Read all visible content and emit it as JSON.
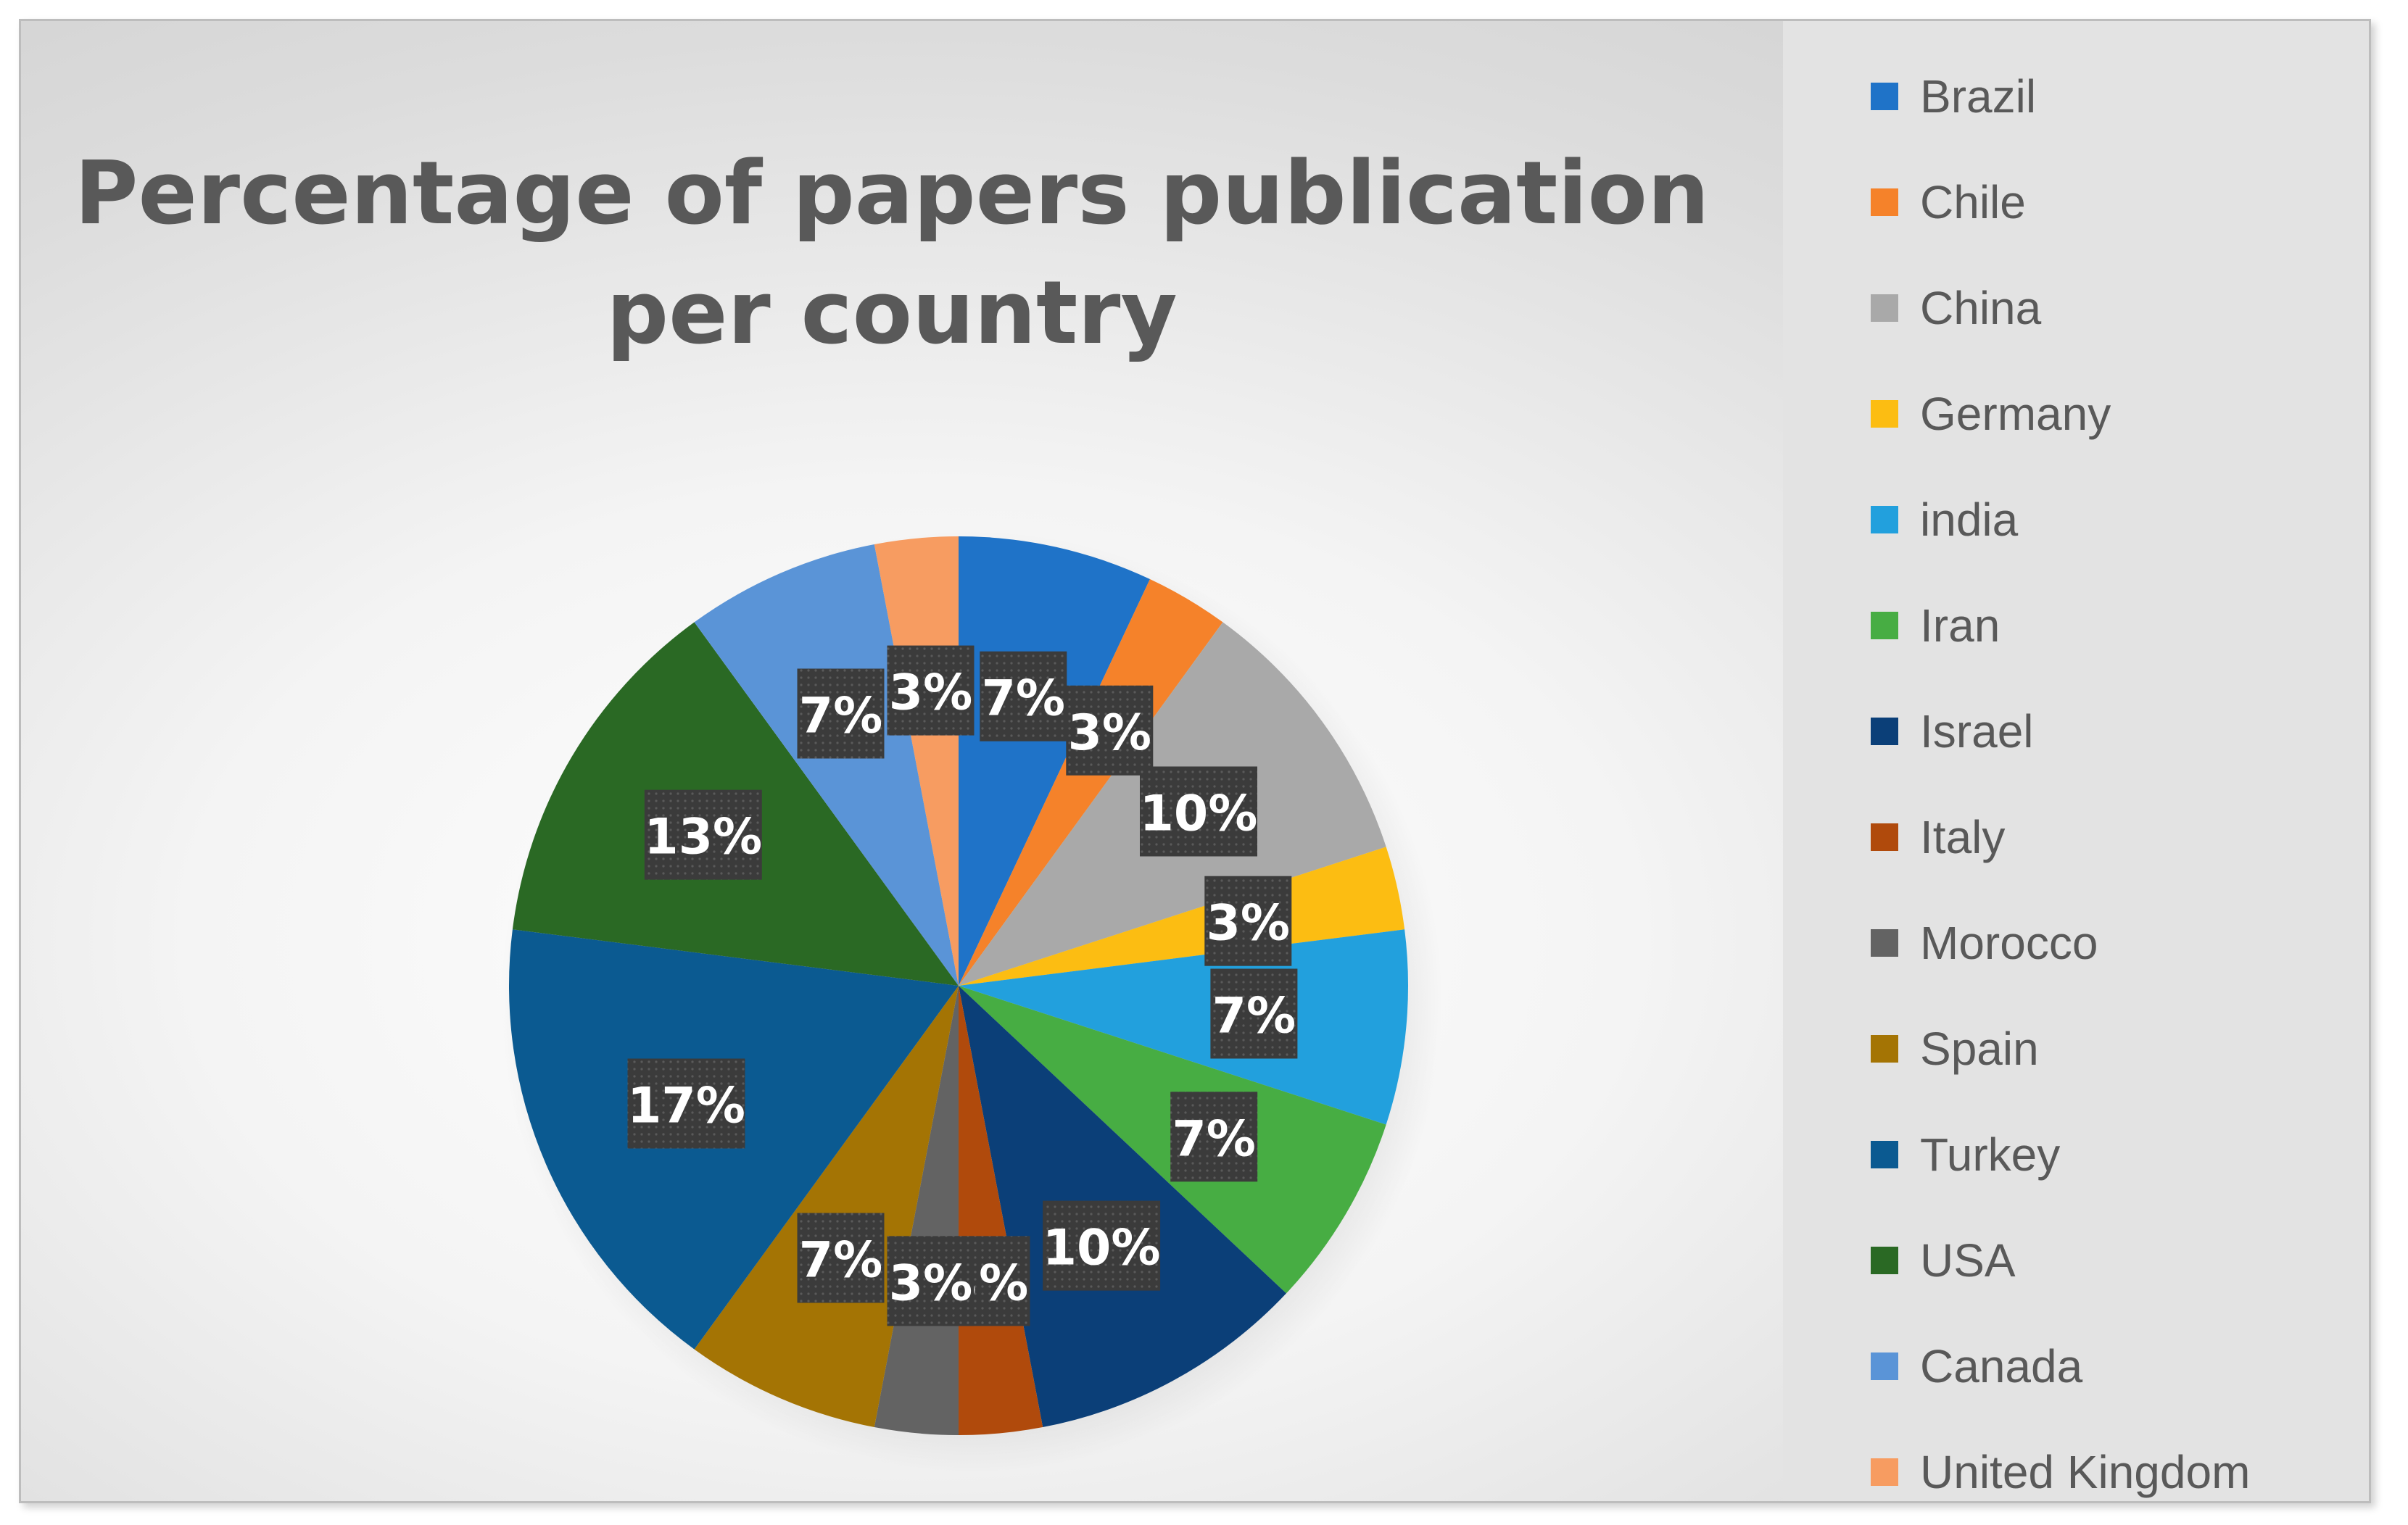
{
  "chart_data": {
    "type": "pie",
    "title": "Percentage of papers publication per country",
    "categories": [
      "Brazil",
      "Chile",
      "China",
      "Germany",
      "india",
      "Iran",
      "Israel",
      "Italy",
      "Morocco",
      "Spain",
      "Turkey",
      "USA",
      "Canada",
      "United Kingdom"
    ],
    "values": [
      7,
      3,
      10,
      3,
      7,
      7,
      10,
      3,
      3,
      7,
      17,
      13,
      7,
      3
    ],
    "data_labels": [
      "7%",
      "3%",
      "10%",
      "3%",
      "7%",
      "7%",
      "10%",
      "3%",
      "3%",
      "7%",
      "17%",
      "13%",
      "7%",
      "3%"
    ],
    "colors": [
      "#1f73c8",
      "#f5822a",
      "#a9a9a9",
      "#fcbd12",
      "#22a0dd",
      "#47ad43",
      "#0b3f78",
      "#b04a0c",
      "#636363",
      "#a47404",
      "#0b5a91",
      "#2a6924",
      "#5a94d7",
      "#f79c61"
    ],
    "legend_position": "right",
    "start_angle": "12 o'clock",
    "direction": "clockwise"
  }
}
